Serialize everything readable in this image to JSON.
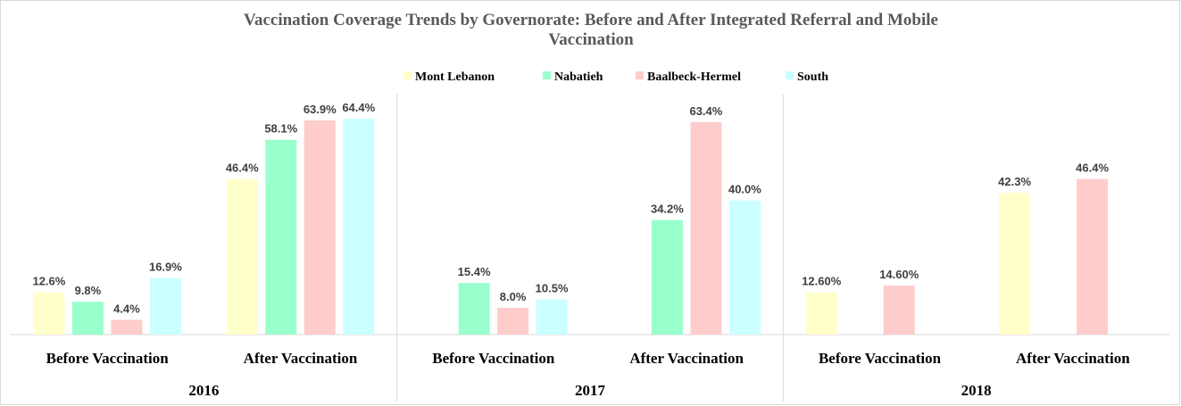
{
  "chart_data": {
    "type": "bar",
    "title": "Vaccination Coverage Trends by Governorate: Before and After Integrated Referral and Mobile Vaccination",
    "categories": [
      "Before Vaccination",
      "After Vaccination",
      "Before Vaccination",
      "After Vaccination",
      "Before Vaccination",
      "After Vaccination"
    ],
    "groups": [
      "2016",
      "2017",
      "2018"
    ],
    "series": [
      {
        "name": "Mont Lebanon",
        "color": "#ffffcc",
        "values": [
          12.6,
          46.4,
          null,
          null,
          12.6,
          42.3
        ],
        "value_labels": [
          "12.6%",
          "46.4%",
          null,
          null,
          "12.60%",
          "42.3%"
        ]
      },
      {
        "name": "Nabatieh",
        "color": "#99ffcc",
        "values": [
          9.8,
          58.1,
          15.4,
          34.2,
          null,
          null
        ],
        "value_labels": [
          "9.8%",
          "58.1%",
          "15.4%",
          "34.2%",
          null,
          null
        ]
      },
      {
        "name": "Baalbeck-Hermel",
        "color": "#ffcccc",
        "values": [
          4.4,
          63.9,
          8.0,
          63.4,
          14.6,
          46.4
        ],
        "value_labels": [
          "4.4%",
          "63.9%",
          "8.0%",
          "63.4%",
          "14.60%",
          "46.4%"
        ]
      },
      {
        "name": "South",
        "color": "#ccffff",
        "values": [
          16.9,
          64.4,
          10.5,
          40.0,
          null,
          null
        ],
        "value_labels": [
          "16.9%",
          "64.4%",
          "10.5%",
          "40.0%",
          null,
          null
        ]
      }
    ]
  }
}
